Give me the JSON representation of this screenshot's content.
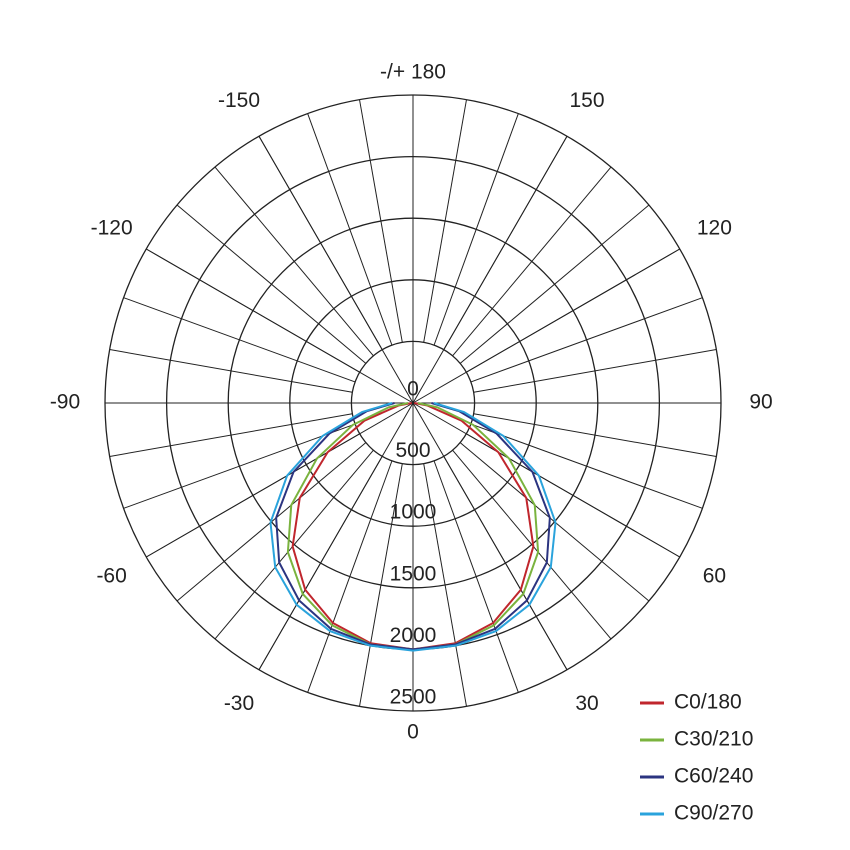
{
  "chart_data": {
    "type": "polar",
    "x": [
      -90,
      -80,
      -70,
      -60,
      -50,
      -40,
      -30,
      -20,
      -10,
      0,
      10,
      20,
      30,
      40,
      50,
      60,
      70,
      80,
      90
    ],
    "series": [
      {
        "name": "C0/180",
        "color": "#c0262d",
        "values": [
          10,
          120,
          420,
          800,
          1200,
          1520,
          1750,
          1900,
          1980,
          2000,
          1980,
          1900,
          1750,
          1520,
          1200,
          800,
          420,
          120,
          10
        ]
      },
      {
        "name": "C30/210",
        "color": "#7ab33e",
        "values": [
          40,
          200,
          520,
          900,
          1290,
          1580,
          1790,
          1920,
          1990,
          2000,
          1990,
          1920,
          1790,
          1580,
          1290,
          900,
          520,
          200,
          40
        ]
      },
      {
        "name": "C60/240",
        "color": "#2b3480",
        "values": [
          150,
          380,
          720,
          1120,
          1450,
          1690,
          1850,
          1950,
          1990,
          2000,
          1990,
          1950,
          1850,
          1690,
          1450,
          1120,
          720,
          380,
          150
        ]
      },
      {
        "name": "C90/270",
        "color": "#2aa3dc",
        "values": [
          170,
          420,
          780,
          1180,
          1510,
          1740,
          1890,
          1970,
          2000,
          2010,
          2000,
          1970,
          1890,
          1740,
          1510,
          1180,
          780,
          420,
          170
        ]
      }
    ],
    "ylim": [
      0,
      2500
    ],
    "yticks": [
      0,
      500,
      1000,
      1500,
      2000,
      2500
    ],
    "xticks": [
      0,
      30,
      60,
      90,
      120,
      150,
      {
        "value": 180,
        "label": "-/+ 180"
      },
      -150,
      -120,
      -90,
      -60,
      -30
    ],
    "grid": true,
    "legend": "bottom-right"
  }
}
